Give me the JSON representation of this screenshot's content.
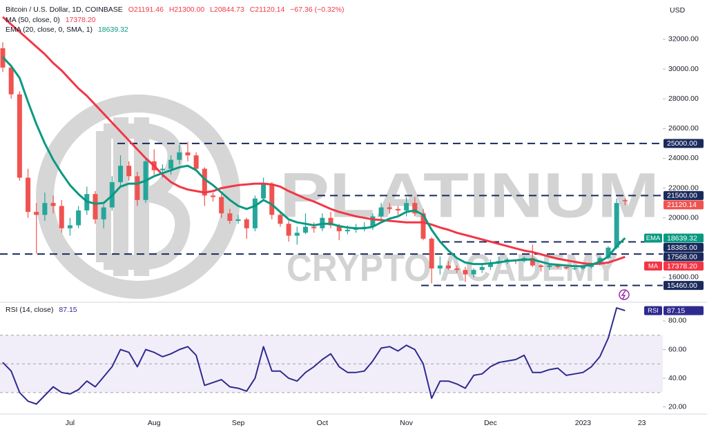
{
  "chart_data": [
    {
      "type": "candlestick",
      "header": {
        "symbol": "Bitcoin / U.S. Dollar, 1D, COINBASE",
        "open": "O21191.46",
        "high": "H21300.00",
        "low": "L20844.73",
        "close": "C21120.14",
        "change": "−67.36 (−0.32%)"
      },
      "currency": "USD",
      "watermark": [
        "PLATINUM",
        "CRYPTO ACADEMY"
      ],
      "categories": [
        null,
        null,
        null,
        null,
        null,
        null,
        null,
        null,
        "Jul",
        null,
        null,
        null,
        null,
        null,
        null,
        null,
        null,
        null,
        "Aug",
        null,
        null,
        null,
        null,
        null,
        null,
        null,
        null,
        null,
        "Sep",
        null,
        null,
        null,
        null,
        null,
        null,
        null,
        null,
        null,
        "Oct",
        null,
        null,
        null,
        null,
        null,
        null,
        null,
        null,
        null,
        "Nov",
        null,
        null,
        null,
        null,
        null,
        null,
        null,
        null,
        null,
        "Dec",
        null,
        null,
        null,
        null,
        null,
        null,
        null,
        null,
        null,
        null,
        "2023",
        null,
        null,
        null,
        null,
        null,
        null,
        "23"
      ],
      "open": [
        31400,
        30100,
        28300,
        22700,
        20400,
        20200,
        21000,
        20800,
        19300,
        19500,
        20500,
        21600,
        19900,
        20700,
        22400,
        23500,
        22800,
        21200,
        23800,
        23200,
        23300,
        23900,
        24400,
        24200,
        23300,
        21500,
        21400,
        20300,
        19800,
        19900,
        19300,
        21300,
        22300,
        20200,
        19600,
        18800,
        19000,
        19400,
        19300,
        20000,
        19500,
        19100,
        19200,
        19300,
        19400,
        20100,
        20700,
        20600,
        20500,
        21000,
        20300,
        18600,
        16600,
        16800,
        16600,
        16500,
        16200,
        16500,
        16700,
        17000,
        17100,
        17200,
        17100,
        17300,
        16800,
        16700,
        16800,
        16700,
        16600,
        16600,
        16700,
        16900,
        17300,
        18000,
        21191.46,
        null,
        null
      ],
      "high": [
        31800,
        30300,
        28500,
        23300,
        21000,
        21700,
        21500,
        21200,
        20000,
        20800,
        22100,
        21800,
        20900,
        22800,
        24200,
        23800,
        23100,
        24000,
        24600,
        23600,
        24200,
        24900,
        25100,
        24400,
        23400,
        21700,
        21800,
        20600,
        20200,
        20000,
        21500,
        22700,
        22400,
        20400,
        19800,
        19400,
        20300,
        19700,
        20300,
        20400,
        19600,
        19500,
        19600,
        19700,
        20300,
        21000,
        21000,
        20800,
        21400,
        21400,
        20600,
        18700,
        17400,
        17100,
        16800,
        16700,
        16600,
        16900,
        17200,
        17400,
        17300,
        17200,
        17400,
        18200,
        16900,
        16900,
        16900,
        16800,
        16700,
        16800,
        17000,
        17400,
        18100,
        21300,
        21300,
        null,
        null
      ],
      "low": [
        29800,
        28000,
        22500,
        20000,
        17600,
        19800,
        20300,
        19000,
        18800,
        19300,
        20200,
        19600,
        19300,
        20500,
        22100,
        22500,
        20800,
        21000,
        22900,
        22700,
        22900,
        23600,
        23800,
        23200,
        20800,
        21100,
        20000,
        19600,
        19600,
        18600,
        19100,
        21100,
        19900,
        19400,
        18400,
        18200,
        18900,
        19000,
        19100,
        19300,
        18500,
        18900,
        19000,
        19100,
        19200,
        19800,
        20300,
        20200,
        20100,
        20100,
        18500,
        15600,
        16200,
        16500,
        16300,
        15700,
        16000,
        16300,
        16500,
        16900,
        16900,
        16900,
        17000,
        16700,
        16400,
        16500,
        16600,
        16500,
        16500,
        16500,
        16600,
        16800,
        17200,
        17900,
        20844.73,
        null,
        null
      ],
      "close": [
        30100,
        28300,
        22700,
        20400,
        20200,
        21000,
        20800,
        19300,
        19500,
        20500,
        21600,
        19900,
        20700,
        22400,
        23500,
        22800,
        21200,
        23800,
        23200,
        23300,
        23900,
        24400,
        24200,
        23300,
        21500,
        21400,
        20300,
        19800,
        19900,
        19300,
        21300,
        22300,
        20200,
        19600,
        18800,
        19000,
        19400,
        19300,
        20000,
        19500,
        19100,
        19200,
        19300,
        19400,
        20100,
        20700,
        20600,
        20500,
        21000,
        20300,
        18600,
        16600,
        16800,
        16600,
        16500,
        16200,
        16500,
        16700,
        17000,
        17100,
        17200,
        17100,
        17300,
        16800,
        16700,
        16800,
        16700,
        16600,
        16600,
        16700,
        16900,
        17300,
        18000,
        21000,
        21120.14,
        null,
        null
      ],
      "up_color": "#26a69a",
      "down_color": "#ef5350",
      "series": [
        {
          "name": "MA (50, close, 0)",
          "tag": "MA",
          "color": "#f23645",
          "last": {
            "value": 17378.2,
            "label": "17378.20"
          },
          "values": [
            33500,
            33000,
            32500,
            32000,
            31500,
            31000,
            30400,
            29900,
            29300,
            28700,
            28200,
            27600,
            27000,
            26400,
            25800,
            25200,
            24600,
            24000,
            23500,
            22900,
            22400,
            22100,
            21900,
            21800,
            21700,
            21800,
            22000,
            22100,
            22200,
            22250,
            22300,
            22300,
            22250,
            22100,
            21800,
            21550,
            21300,
            21100,
            20850,
            20600,
            20400,
            20250,
            20100,
            20000,
            19900,
            19850,
            19800,
            19750,
            19700,
            19700,
            19700,
            19550,
            19350,
            19200,
            19000,
            18850,
            18700,
            18550,
            18400,
            18250,
            18100,
            17950,
            17800,
            17700,
            17550,
            17400,
            17250,
            17150,
            17050,
            16950,
            16900,
            16920,
            17000,
            17180,
            17378.2,
            null,
            null
          ]
        },
        {
          "name": "EMA (20, close, 0, SMA, 1)",
          "tag": "EMA",
          "color": "#089981",
          "last": 18639.32,
          "values": [
            30800,
            30200,
            29400,
            27800,
            26300,
            25000,
            23900,
            23000,
            22200,
            21600,
            21100,
            20950,
            21000,
            21500,
            22100,
            22300,
            22300,
            22500,
            22800,
            23000,
            23200,
            23400,
            23500,
            23200,
            22600,
            22200,
            21700,
            21200,
            20800,
            20600,
            20800,
            21200,
            20900,
            20400,
            19900,
            19700,
            19600,
            19500,
            19600,
            19600,
            19450,
            19350,
            19300,
            19300,
            19400,
            19700,
            19950,
            20100,
            20400,
            20500,
            20200,
            19200,
            18400,
            17800,
            17300,
            17000,
            16900,
            16900,
            16950,
            17000,
            17100,
            17150,
            17200,
            17200,
            17050,
            16900,
            16850,
            16800,
            16750,
            16750,
            16850,
            17050,
            17400,
            18100,
            18639.32,
            null,
            null
          ]
        }
      ],
      "last_price": 21120.14,
      "levels": [
        {
          "value": 25000,
          "label": "25000.00"
        },
        {
          "value": 21500,
          "label": "21500.00"
        },
        {
          "value": 18385,
          "label": "18385.00"
        },
        {
          "value": 17568,
          "label": "17568.00"
        },
        {
          "value": 15460,
          "label": "15460.00"
        }
      ],
      "level_color": "#1b2a5c",
      "ylim": [
        14375,
        34640
      ],
      "yticks": [
        {
          "value": 16000,
          "label": "16000.00"
        },
        {
          "value": 18000,
          "label": "18000.00"
        },
        {
          "value": 20000,
          "label": "20000.00"
        },
        {
          "value": 22000,
          "label": "22000.00"
        },
        {
          "value": 24000,
          "label": "24000.00"
        },
        {
          "value": 26000,
          "label": "26000.00"
        },
        {
          "value": 28000,
          "label": "28000.00"
        },
        {
          "value": 30000,
          "label": "30000.00"
        },
        {
          "value": 32000,
          "label": "32000.00"
        }
      ]
    },
    {
      "type": "line",
      "name": "RSI (14, close)",
      "tag": "RSI",
      "color": "#2e2a8f",
      "last": 87.15,
      "values": [
        51,
        45,
        30,
        24,
        22,
        28,
        34,
        30,
        29,
        32,
        38,
        34,
        41,
        48,
        60,
        58,
        48,
        60,
        58,
        55,
        57,
        60,
        62,
        56,
        35,
        37,
        39,
        34,
        33,
        31,
        40,
        62,
        45,
        45,
        40,
        38,
        44,
        48,
        53,
        57,
        48,
        44,
        44,
        45,
        52,
        61,
        62,
        59,
        63,
        60,
        50,
        26,
        38,
        38,
        36,
        33,
        42,
        43,
        48,
        51,
        52,
        53,
        56,
        44,
        44,
        46,
        47,
        42,
        43,
        44,
        48,
        55,
        68,
        89,
        87.15,
        null,
        null
      ],
      "bands": [
        70,
        50,
        30
      ],
      "band_color": "#7e57c2",
      "ylim": [
        15,
        92
      ],
      "yticks": [
        {
          "value": 20,
          "label": "20.00"
        },
        {
          "value": 40,
          "label": "40.00"
        },
        {
          "value": 60,
          "label": "60.00"
        },
        {
          "value": 80,
          "label": "80.00"
        }
      ]
    }
  ]
}
